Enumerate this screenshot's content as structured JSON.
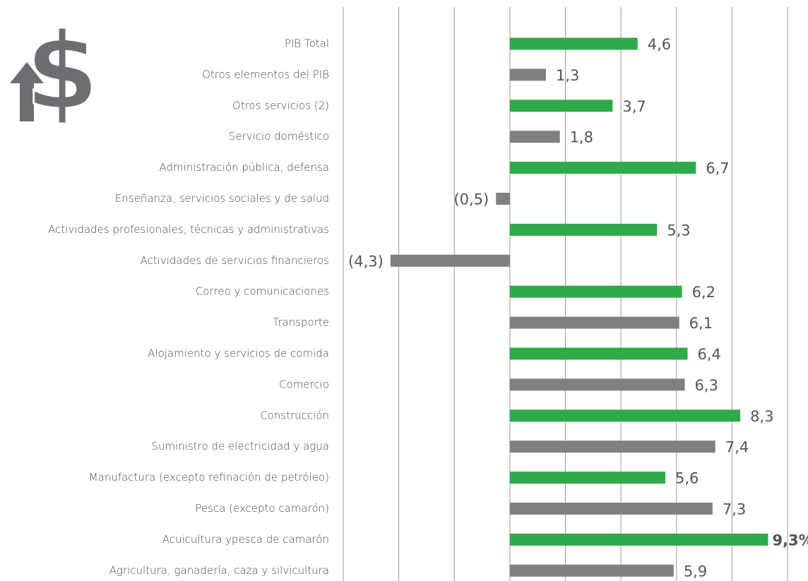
{
  "chart_data": {
    "type": "barh",
    "categories": [
      "PIB Total",
      "Otros elementos del PIB",
      "Otros servicios (2)",
      "Servicio doméstico",
      "Administración pública, defensa",
      "Enseñanza, servicios sociales y de salud",
      "Actividades profesionales, técnicas y administrativas",
      "Actividades de servicios financieros",
      "Correo y comunicaciones",
      "Transporte",
      "Alojamiento y servicios de comida",
      "Comercio",
      "Construcción",
      "Suministro de electricidad y agua",
      "Manufactura (excepto refinación de petróleo)",
      "Pesca (excepto camarón)",
      "Acuicultura ypesca de camarón",
      "Agricultura, ganadería, caza y silvicultura"
    ],
    "values": [
      4.6,
      1.3,
      3.7,
      1.8,
      6.7,
      -0.5,
      5.3,
      -4.3,
      6.2,
      6.1,
      6.4,
      6.3,
      8.3,
      7.4,
      5.6,
      7.3,
      9.3,
      5.9
    ],
    "value_labels": [
      "4,6",
      "1,3",
      "3,7",
      "1,8",
      "6,7",
      "(0,5)",
      "5,3",
      "(4,3)",
      "6,2",
      "6,1",
      "6,4",
      "6,3",
      "8,3",
      "7,4",
      "5,6",
      "7,3",
      "9,3%",
      "5,9"
    ],
    "colors": [
      "#2eaa4a",
      "#808083",
      "#2eaa4a",
      "#808083",
      "#2eaa4a",
      "#808083",
      "#2eaa4a",
      "#808083",
      "#2eaa4a",
      "#808083",
      "#2eaa4a",
      "#808083",
      "#2eaa4a",
      "#808083",
      "#2eaa4a",
      "#808083",
      "#2eaa4a",
      "#808083"
    ],
    "xlim": [
      -6,
      10
    ],
    "xticks": [
      -6,
      -4,
      -2,
      0,
      2,
      4,
      6,
      8,
      10
    ],
    "grid": true
  }
}
